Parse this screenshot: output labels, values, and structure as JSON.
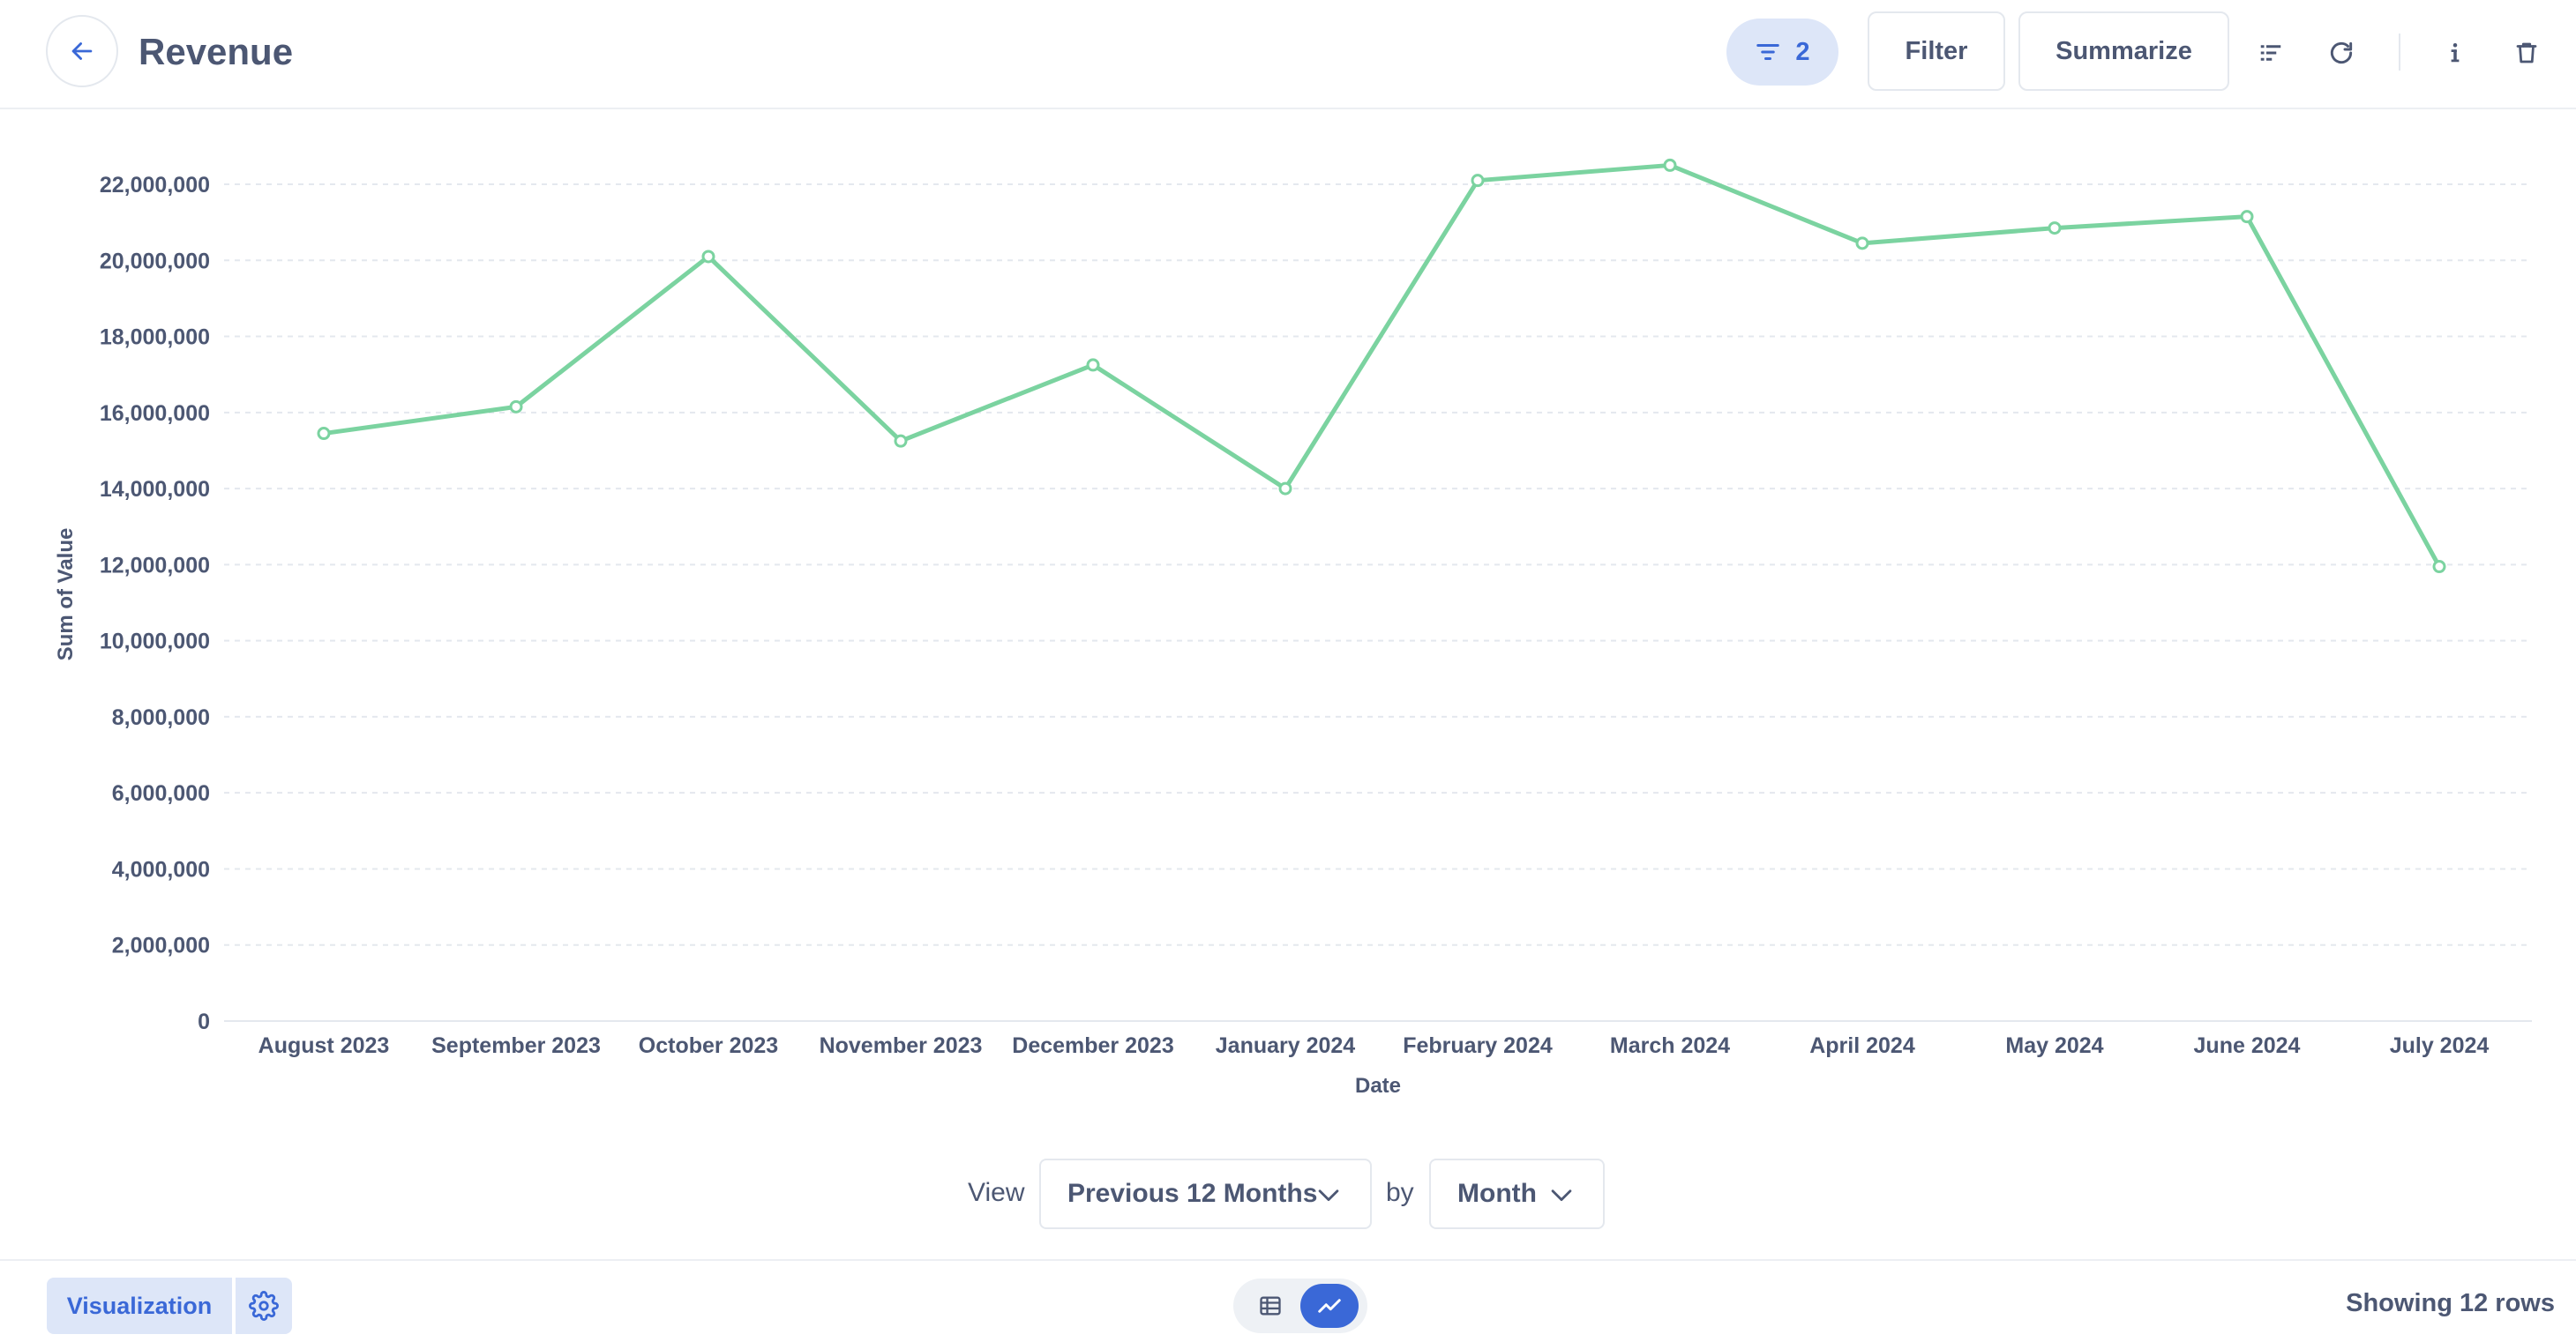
{
  "header": {
    "title": "Revenue",
    "filter_count": "2",
    "filter_label": "Filter",
    "summarize_label": "Summarize",
    "icons": [
      "arrow-left-icon",
      "filter-icon",
      "notebook-icon",
      "refresh-icon",
      "info-icon",
      "trash-icon"
    ]
  },
  "chart_data": {
    "type": "line",
    "x": [
      "August 2023",
      "September 2023",
      "October 2023",
      "November 2023",
      "December 2023",
      "January 2024",
      "February 2024",
      "March 2024",
      "April 2024",
      "May 2024",
      "June 2024",
      "July 2024"
    ],
    "series": [
      {
        "values": [
          15450000,
          16150000,
          20100000,
          15250000,
          17250000,
          14000000,
          22100000,
          22500000,
          20450000,
          20850000,
          21150000,
          11950000
        ]
      }
    ],
    "xlabel": "Date",
    "ylabel": "Sum of Value",
    "ylim": [
      0,
      22000000
    ],
    "yticks": [
      "0",
      "2,000,000",
      "4,000,000",
      "6,000,000",
      "8,000,000",
      "10,000,000",
      "12,000,000",
      "14,000,000",
      "16,000,000",
      "18,000,000",
      "20,000,000",
      "22,000,000"
    ],
    "ytick_values": [
      0,
      2000000,
      4000000,
      6000000,
      8000000,
      10000000,
      12000000,
      14000000,
      16000000,
      18000000,
      20000000,
      22000000
    ],
    "grid": true,
    "line_color": "#7bd3a0"
  },
  "view": {
    "view_label": "View",
    "range_value": "Previous 12 Months",
    "by_label": "by",
    "unit_value": "Month"
  },
  "footer": {
    "visualization_label": "Visualization",
    "rows_label": "Showing 12 rows"
  },
  "colors": {
    "accent": "#3a68d7",
    "accent_light": "#dde6f8",
    "text": "#4c5773"
  }
}
